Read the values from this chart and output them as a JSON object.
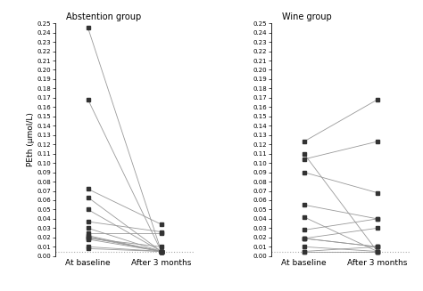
{
  "abstention_baseline": [
    0.245,
    0.168,
    0.072,
    0.063,
    0.05,
    0.037,
    0.03,
    0.025,
    0.022,
    0.021,
    0.02,
    0.019,
    0.018,
    0.01,
    0.008
  ],
  "abstention_followup": [
    0.005,
    0.005,
    0.034,
    0.005,
    0.005,
    0.026,
    0.005,
    0.025,
    0.005,
    0.005,
    0.005,
    0.01,
    0.005,
    0.005,
    0.005
  ],
  "wine_baseline": [
    0.123,
    0.11,
    0.104,
    0.09,
    0.055,
    0.042,
    0.028,
    0.019,
    0.019,
    0.019,
    0.01,
    0.005,
    0.005
  ],
  "wine_followup": [
    0.168,
    0.005,
    0.123,
    0.068,
    0.04,
    0.005,
    0.04,
    0.01,
    0.03,
    0.01,
    0.005,
    0.005,
    0.01
  ],
  "dotted_line_y": 0.005,
  "ylim": [
    0.0,
    0.25
  ],
  "yticks": [
    0.0,
    0.01,
    0.02,
    0.03,
    0.04,
    0.05,
    0.06,
    0.07,
    0.08,
    0.09,
    0.1,
    0.11,
    0.12,
    0.13,
    0.14,
    0.15,
    0.16,
    0.17,
    0.18,
    0.19,
    0.2,
    0.21,
    0.22,
    0.23,
    0.24,
    0.25
  ],
  "xlabel_left": "At baseline",
  "xlabel_right": "After 3 months",
  "ylabel": "PEth (μmol/L)",
  "title_left": "Abstention group",
  "title_right": "Wine group",
  "line_color": "#999999",
  "marker_color": "#333333",
  "background_color": "#ffffff",
  "tick_fontsize": 5.0,
  "label_fontsize": 6.5,
  "title_fontsize": 7.0
}
